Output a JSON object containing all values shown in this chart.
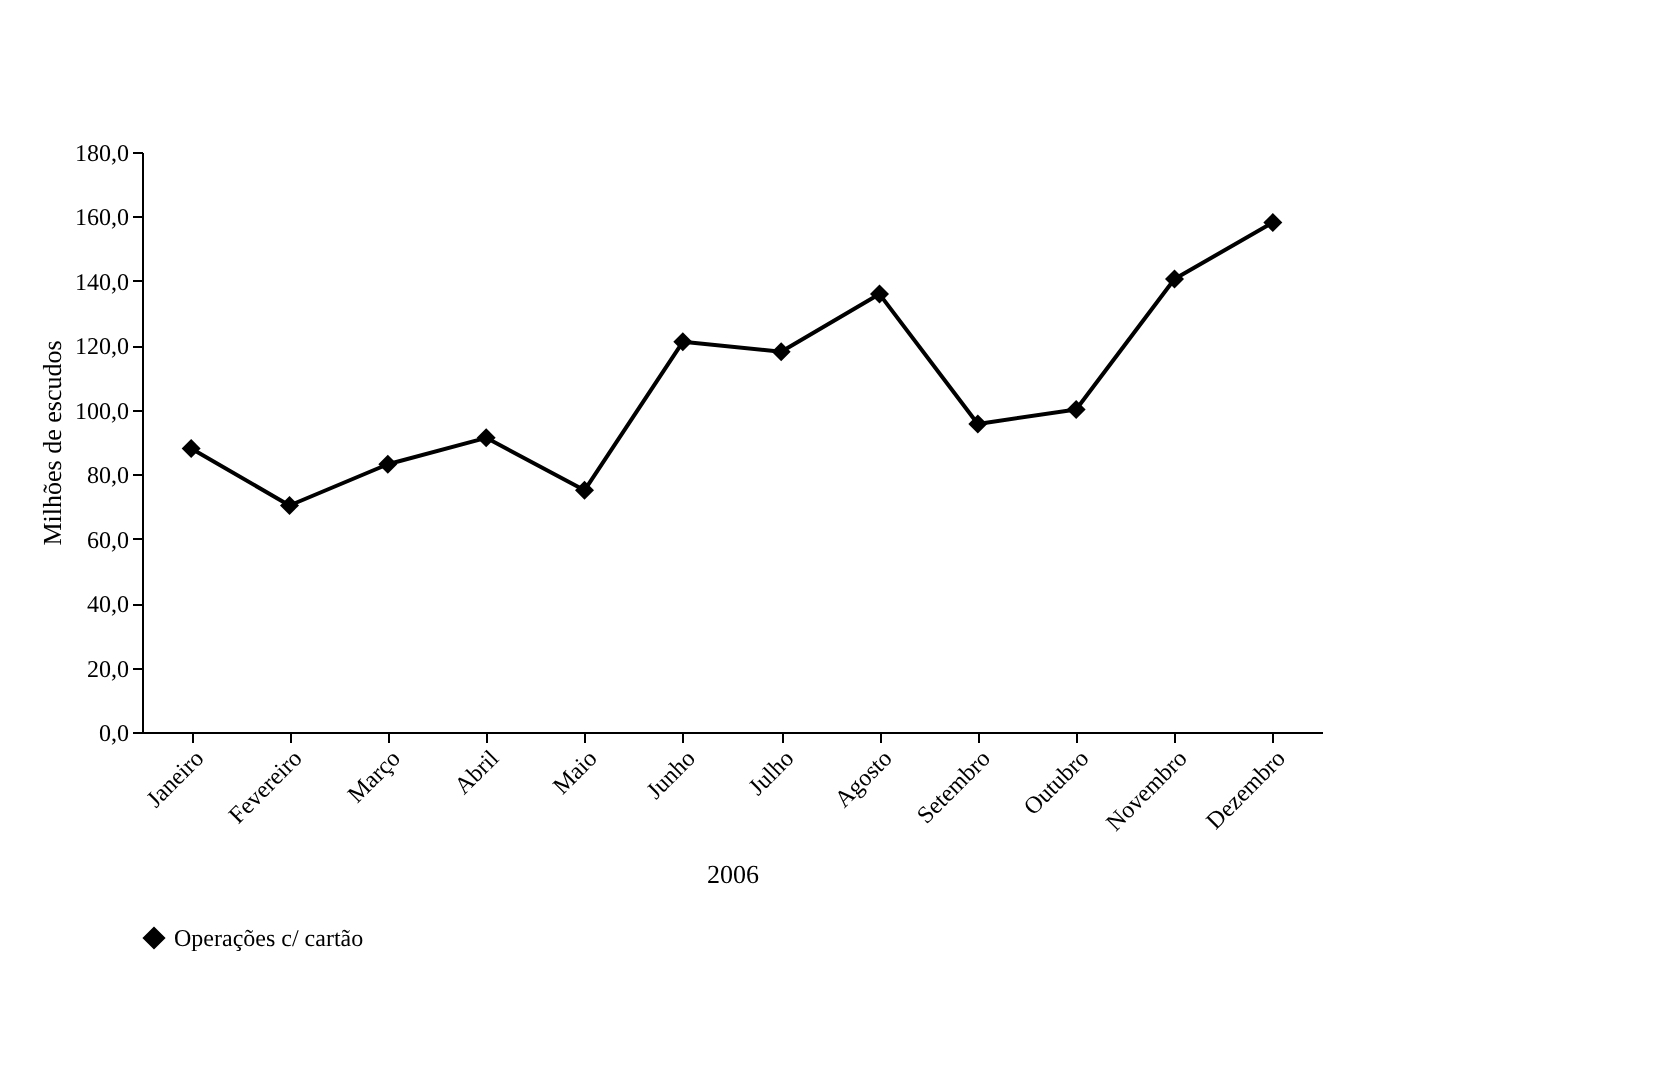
{
  "chart_data": {
    "type": "line",
    "xlabel": "2006",
    "ylabel": "Milhões de escudos",
    "categories": [
      "Janeiro",
      "Fevereiro",
      "Março",
      "Abril",
      "Maio",
      "Junho",
      "Julho",
      "Agosto",
      "Setembro",
      "Outubro",
      "Novembro",
      "Dezembro"
    ],
    "series": [
      {
        "name": "Operações c/ cartão",
        "color": "#000000",
        "values": [
          88.0,
          70.3,
          83.1,
          91.3,
          75.0,
          121.1,
          118.0,
          135.9,
          95.6,
          100.1,
          140.6,
          158.1
        ]
      }
    ],
    "ylim": [
      0,
      180
    ],
    "yticks": [
      {
        "value": 0,
        "label": "0,0"
      },
      {
        "value": 20,
        "label": "20,0"
      },
      {
        "value": 40,
        "label": "40,0"
      },
      {
        "value": 60,
        "label": "60,0"
      },
      {
        "value": 80,
        "label": "80,0"
      },
      {
        "value": 100,
        "label": "100,0"
      },
      {
        "value": 120,
        "label": "120,0"
      },
      {
        "value": 140,
        "label": "140,0"
      },
      {
        "value": 160,
        "label": "160,0"
      },
      {
        "value": 180,
        "label": "180,0"
      }
    ],
    "marker": "diamond",
    "line_style": "solid",
    "grid": false,
    "legend": "bottom"
  }
}
